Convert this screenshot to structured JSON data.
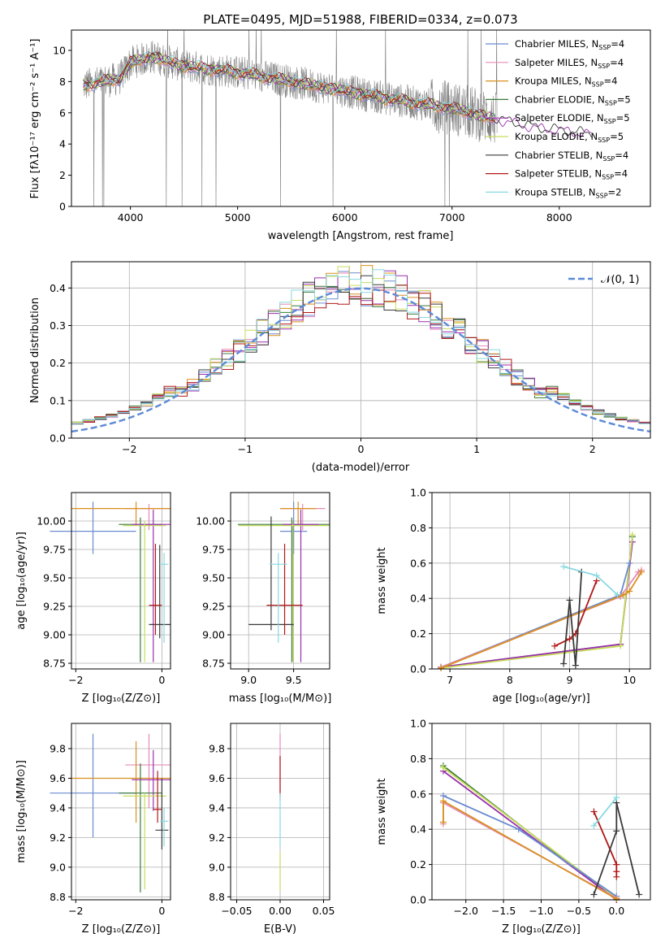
{
  "chart_data": [
    {
      "type": "line",
      "title": "PLATE=0495, MJD=51988, FIBERID=0334, z=0.073",
      "xlabel": "wavelength [Angstrom, rest frame]",
      "ylabel": "Flux [fλ10⁻¹⁷ erg cm⁻² s⁻¹ A⁻¹]",
      "xlim": [
        3450,
        8850
      ],
      "ylim": [
        0,
        11.3
      ],
      "xticks": [
        "4000",
        "5000",
        "6000",
        "7000",
        "8000"
      ],
      "yticks": [
        "0",
        "2",
        "4",
        "6",
        "8",
        "10"
      ],
      "legend": "upper-right",
      "legend_entries": [
        {
          "label": "Chabrier MILES, N",
          "sub": "SSP",
          "tail": "=4",
          "color": "#6a8bd0"
        },
        {
          "label": "Salpeter MILES, N",
          "sub": "SSP",
          "tail": "=4",
          "color": "#e58bb8"
        },
        {
          "label": "Kroupa MILES, N",
          "sub": "SSP",
          "tail": "=4",
          "color": "#d9901f"
        },
        {
          "label": "Chabrier ELODIE, N",
          "sub": "SSP",
          "tail": "=5",
          "color": "#3a7a3a"
        },
        {
          "label": "Salpeter ELODIE, N",
          "sub": "SSP",
          "tail": "=5",
          "color": "#9b2fae"
        },
        {
          "label": "Kroupa ELODIE, N",
          "sub": "SSP",
          "tail": "=5",
          "color": "#c8dc5a"
        },
        {
          "label": "Chabrier STELIB, N",
          "sub": "SSP",
          "tail": "=4",
          "color": "#3a3a3a"
        },
        {
          "label": "Salpeter STELIB, N",
          "sub": "SSP",
          "tail": "=4",
          "color": "#b01818"
        },
        {
          "label": "Kroupa STELIB, N",
          "sub": "SSP",
          "tail": "=2",
          "color": "#88d8e0"
        }
      ],
      "data_color": "#808080",
      "model_continuum": {
        "x": [
          3600,
          3900,
          4000,
          4200,
          4500,
          5000,
          5500,
          6000,
          6500,
          7000,
          7400,
          7800,
          8100,
          8300
        ],
        "y": [
          7.8,
          8.2,
          9.2,
          9.6,
          9.0,
          8.6,
          8.0,
          7.4,
          6.8,
          6.3,
          5.6,
          5.0,
          4.8,
          4.6
        ]
      }
    },
    {
      "type": "line",
      "xlabel": "(data-model)/error",
      "ylabel": "Normed distribution",
      "xlim": [
        -2.5,
        2.5
      ],
      "ylim": [
        0,
        0.47
      ],
      "xticks": [
        "−2",
        "−1",
        "0",
        "1",
        "2"
      ],
      "yticks": [
        "0.0",
        "0.1",
        "0.2",
        "0.3",
        "0.4"
      ],
      "legend": "upper-right",
      "legend_label": "𝒩(0, 1)",
      "gaussian_color": "#5b8ad8",
      "hist_bin_width": 0.1,
      "hist_x": [
        -2.5,
        2.5
      ]
    },
    {
      "type": "scatter",
      "xlabel": "Z [log₁₀(Z/Z⊙)]",
      "ylabel": "age  [log₁₀(age/yr)]",
      "xlim": [
        -2.1,
        0.2
      ],
      "ylim": [
        8.7,
        10.25
      ],
      "xticks": [
        "−2",
        "0"
      ],
      "yticks": [
        "8.75",
        "9.00",
        "9.25",
        "9.50",
        "9.75",
        "10.00"
      ],
      "points": [
        {
          "x": -1.6,
          "y": 9.91,
          "xerr": 1.0,
          "ylo": 9.71,
          "yhi": 10.17,
          "color": "#6a8bd0"
        },
        {
          "x": -0.3,
          "y": 10.11,
          "xerr": 0.55,
          "ylo": 9.92,
          "yhi": 10.15,
          "color": "#e58bb8"
        },
        {
          "x": -0.6,
          "y": 10.11,
          "xerr": 1.5,
          "ylo": 9.97,
          "yhi": 10.17,
          "color": "#d9901f"
        },
        {
          "x": -0.5,
          "y": 9.97,
          "xerr": 0.5,
          "ylo": 8.76,
          "yhi": 10.03,
          "color": "#3a7a3a"
        },
        {
          "x": -0.2,
          "y": 9.97,
          "xerr": 0.5,
          "ylo": 8.76,
          "yhi": 10.1,
          "color": "#9b2fae"
        },
        {
          "x": -0.4,
          "y": 9.96,
          "xerr": 0.5,
          "ylo": 8.76,
          "yhi": 10.0,
          "color": "#c8dc5a"
        },
        {
          "x": -0.05,
          "y": 9.09,
          "xerr": 0.25,
          "ylo": 8.97,
          "yhi": 9.79,
          "color": "#3a3a3a"
        },
        {
          "x": -0.15,
          "y": 9.26,
          "xerr": 0.15,
          "ylo": 9.0,
          "yhi": 9.8,
          "color": "#b01818"
        },
        {
          "x": 0.05,
          "y": 9.62,
          "xerr": 0.1,
          "ylo": 8.93,
          "yhi": 9.72,
          "color": "#88d8e0"
        }
      ]
    },
    {
      "type": "scatter",
      "xlabel": "mass [log₁₀(M/M⊙)]",
      "ylabel": "",
      "xlim": [
        8.8,
        9.9
      ],
      "ylim": [
        8.7,
        10.25
      ],
      "xticks": [
        "9.0",
        "9.5"
      ],
      "yticks": [
        "8.75",
        "9.00",
        "9.25",
        "9.50",
        "9.75",
        "10.00"
      ],
      "points": [
        {
          "x": 9.5,
          "y": 9.91,
          "xerr": 0.15,
          "ylo": 9.71,
          "yhi": 10.17,
          "color": "#6a8bd0"
        },
        {
          "x": 9.6,
          "y": 10.11,
          "xerr": 0.25,
          "ylo": 9.92,
          "yhi": 10.15,
          "color": "#e58bb8"
        },
        {
          "x": 9.55,
          "y": 10.11,
          "xerr": 0.2,
          "ylo": 9.97,
          "yhi": 10.17,
          "color": "#d9901f"
        },
        {
          "x": 9.48,
          "y": 9.97,
          "xerr": 0.6,
          "ylo": 8.76,
          "yhi": 10.03,
          "color": "#3a7a3a"
        },
        {
          "x": 9.58,
          "y": 9.97,
          "xerr": 0.2,
          "ylo": 8.76,
          "yhi": 10.1,
          "color": "#9b2fae"
        },
        {
          "x": 9.49,
          "y": 9.96,
          "xerr": 0.6,
          "ylo": 8.76,
          "yhi": 10.0,
          "color": "#c8dc5a"
        },
        {
          "x": 9.25,
          "y": 9.09,
          "xerr": 0.25,
          "ylo": 9.04,
          "yhi": 10.04,
          "color": "#3a3a3a"
        },
        {
          "x": 9.4,
          "y": 9.26,
          "xerr": 0.2,
          "ylo": 9.0,
          "yhi": 9.8,
          "color": "#b01818"
        },
        {
          "x": 9.33,
          "y": 9.62,
          "xerr": 0.1,
          "ylo": 8.93,
          "yhi": 9.72,
          "color": "#88d8e0"
        }
      ]
    },
    {
      "type": "line",
      "xlabel": "age  [log₁₀(age/yr)]",
      "ylabel": "mass weight",
      "xlim": [
        6.7,
        10.35
      ],
      "ylim": [
        0,
        1.0
      ],
      "xticks": [
        "7",
        "8",
        "9",
        "10"
      ],
      "yticks": [
        "0.0",
        "0.2",
        "0.4",
        "0.6",
        "0.8",
        "1.0"
      ],
      "series": [
        {
          "color": "#3a7a3a",
          "x": [
            6.85,
            9.85,
            10.05
          ],
          "y": [
            0.01,
            0.14,
            0.75
          ]
        },
        {
          "color": "#9b2fae",
          "x": [
            6.85,
            9.85,
            10.05
          ],
          "y": [
            0.01,
            0.14,
            0.72
          ]
        },
        {
          "color": "#c8dc5a",
          "x": [
            6.85,
            9.85,
            10.05
          ],
          "y": [
            0.005,
            0.13,
            0.76
          ]
        },
        {
          "color": "#6a8bd0",
          "x": [
            6.85,
            9.85,
            10.0
          ],
          "y": [
            0.01,
            0.42,
            0.6
          ]
        },
        {
          "color": "#e58bb8",
          "x": [
            6.85,
            9.85,
            10.15,
            10.2
          ],
          "y": [
            0.01,
            0.41,
            0.55,
            0.56
          ]
        },
        {
          "color": "#d9901f",
          "x": [
            6.85,
            9.9,
            10.0,
            10.2
          ],
          "y": [
            0.005,
            0.42,
            0.44,
            0.55
          ]
        },
        {
          "color": "#b01818",
          "x": [
            8.75,
            9.0,
            9.1,
            9.45
          ],
          "y": [
            0.13,
            0.17,
            0.2,
            0.5
          ]
        },
        {
          "color": "#3a3a3a",
          "x": [
            8.9,
            9.0,
            9.1,
            9.2
          ],
          "y": [
            0.03,
            0.39,
            0.02,
            0.55
          ]
        },
        {
          "color": "#88d8e0",
          "x": [
            8.9,
            9.45,
            9.8
          ],
          "y": [
            0.58,
            0.53,
            0.42
          ]
        }
      ]
    },
    {
      "type": "scatter",
      "xlabel": "Z [log₁₀(Z/Z⊙)]",
      "ylabel": "mass [log₁₀(M/M⊙)]",
      "xlim": [
        -2.1,
        0.2
      ],
      "ylim": [
        8.78,
        9.97
      ],
      "xticks": [
        "−2",
        "0"
      ],
      "yticks": [
        "8.8",
        "9.0",
        "9.2",
        "9.4",
        "9.6",
        "9.8"
      ],
      "points": [
        {
          "x": -1.6,
          "y": 9.5,
          "xerr": 1.0,
          "ylo": 9.2,
          "yhi": 9.9,
          "color": "#6a8bd0"
        },
        {
          "x": -0.3,
          "y": 9.69,
          "xerr": 0.55,
          "ylo": 9.4,
          "yhi": 9.9,
          "color": "#e58bb8"
        },
        {
          "x": -0.6,
          "y": 9.6,
          "xerr": 1.5,
          "ylo": 9.3,
          "yhi": 9.85,
          "color": "#d9901f"
        },
        {
          "x": -0.5,
          "y": 9.5,
          "xerr": 0.5,
          "ylo": 8.83,
          "yhi": 9.7,
          "color": "#3a7a3a"
        },
        {
          "x": -0.2,
          "y": 9.59,
          "xerr": 0.5,
          "ylo": 9.38,
          "yhi": 9.79,
          "color": "#9b2fae"
        },
        {
          "x": -0.4,
          "y": 9.48,
          "xerr": 0.5,
          "ylo": 8.85,
          "yhi": 9.5,
          "color": "#c8dc5a"
        },
        {
          "x": 0.0,
          "y": 9.25,
          "xerr": 0.15,
          "ylo": 9.12,
          "yhi": 9.6,
          "color": "#3a3a3a"
        },
        {
          "x": -0.1,
          "y": 9.39,
          "xerr": 0.1,
          "ylo": 9.3,
          "yhi": 9.65,
          "color": "#b01818"
        },
        {
          "x": 0.05,
          "y": 9.31,
          "xerr": 0.1,
          "ylo": 9.14,
          "yhi": 9.4,
          "color": "#88d8e0"
        }
      ]
    },
    {
      "type": "scatter",
      "xlabel": "E(B-V)",
      "ylabel": "",
      "xlim": [
        -0.057,
        0.057
      ],
      "ylim": [
        8.78,
        9.97
      ],
      "xticks": [
        "−0.05",
        "0.00",
        "0.05"
      ],
      "yticks": [
        "8.8",
        "9.0",
        "9.2",
        "9.4",
        "9.6",
        "9.8"
      ],
      "points": [
        {
          "x": 0.0,
          "y": 9.6,
          "ylo": 9.45,
          "yhi": 9.9,
          "color": "#e58bb8"
        },
        {
          "x": 0.0,
          "y": 9.6,
          "ylo": 9.48,
          "yhi": 9.75,
          "color": "#b01818"
        },
        {
          "x": 0.0,
          "y": 9.3,
          "ylo": 9.14,
          "yhi": 9.5,
          "color": "#88d8e0"
        },
        {
          "x": 0.0,
          "y": 9.0,
          "ylo": 8.84,
          "yhi": 9.1,
          "color": "#c8dc5a"
        }
      ]
    },
    {
      "type": "line",
      "xlabel": "Z [log₁₀(Z/Z⊙)]",
      "ylabel": "mass weight",
      "xlim": [
        -2.45,
        0.45
      ],
      "ylim": [
        0,
        1.0
      ],
      "xticks": [
        "−2.0",
        "−1.5",
        "−1.0",
        "−0.5",
        "0.0"
      ],
      "yticks": [
        "0.0",
        "0.2",
        "0.4",
        "0.6",
        "0.8",
        "1.0"
      ],
      "series": [
        {
          "color": "#3a7a3a",
          "x": [
            -2.3,
            0.0
          ],
          "y": [
            0.76,
            0.0
          ]
        },
        {
          "color": "#9b2fae",
          "x": [
            -2.3,
            0.0
          ],
          "y": [
            0.73,
            0.0
          ]
        },
        {
          "color": "#c8dc5a",
          "x": [
            -2.3,
            0.0
          ],
          "y": [
            0.75,
            0.01
          ]
        },
        {
          "color": "#6a8bd0",
          "x": [
            -2.3,
            -1.3,
            0.0
          ],
          "y": [
            0.59,
            0.4,
            0.02
          ]
        },
        {
          "color": "#e58bb8",
          "x": [
            -2.3,
            -2.3,
            0.0
          ],
          "y": [
            0.43,
            0.55,
            0.01
          ]
        },
        {
          "color": "#d9901f",
          "x": [
            -2.3,
            -2.3,
            0.0
          ],
          "y": [
            0.44,
            0.56,
            0.005
          ]
        },
        {
          "color": "#b01818",
          "x": [
            -0.3,
            0.0,
            0.0,
            0.0
          ],
          "y": [
            0.5,
            0.2,
            0.16,
            0.13
          ]
        },
        {
          "color": "#3a3a3a",
          "x": [
            -0.3,
            0.0,
            0.0,
            0.3
          ],
          "y": [
            0.03,
            0.39,
            0.55,
            0.03
          ]
        },
        {
          "color": "#88d8e0",
          "x": [
            -0.3,
            0.0
          ],
          "y": [
            0.42,
            0.58
          ]
        }
      ]
    }
  ]
}
